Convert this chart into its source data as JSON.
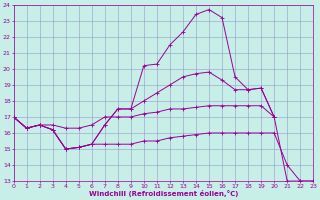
{
  "xlabel": "Windchill (Refroidissement éolien,°C)",
  "xlim": [
    0,
    23
  ],
  "ylim": [
    13,
    24
  ],
  "yticks": [
    13,
    14,
    15,
    16,
    17,
    18,
    19,
    20,
    21,
    22,
    23,
    24
  ],
  "xticks": [
    0,
    1,
    2,
    3,
    4,
    5,
    6,
    7,
    8,
    9,
    10,
    11,
    12,
    13,
    14,
    15,
    16,
    17,
    18,
    19,
    20,
    21,
    22,
    23
  ],
  "bg_color": "#c8eee8",
  "grid_color": "#9999cc",
  "line_color": "#990099",
  "line1_x": [
    0,
    1,
    2,
    3,
    4,
    5,
    6,
    7,
    8,
    9,
    10,
    11,
    12,
    13,
    14,
    15,
    16,
    17,
    18,
    19,
    20,
    21,
    22,
    23
  ],
  "line1_y": [
    17.0,
    16.3,
    16.5,
    16.2,
    15.0,
    15.1,
    15.3,
    16.5,
    17.5,
    17.5,
    20.2,
    20.3,
    21.5,
    22.3,
    23.4,
    23.7,
    23.2,
    19.5,
    18.7,
    18.8,
    17.0,
    13.0,
    13.0,
    13.0
  ],
  "line2_x": [
    0,
    1,
    2,
    3,
    4,
    5,
    6,
    7,
    8,
    9,
    10,
    11,
    12,
    13,
    14,
    15,
    16,
    17,
    18,
    19,
    20
  ],
  "line2_y": [
    17.0,
    16.3,
    16.5,
    16.2,
    15.0,
    15.1,
    15.3,
    16.5,
    17.5,
    17.5,
    18.0,
    18.5,
    19.0,
    19.5,
    19.7,
    19.8,
    19.3,
    18.7,
    18.7,
    18.8,
    17.0
  ],
  "line3_x": [
    0,
    1,
    2,
    3,
    4,
    5,
    6,
    7,
    8,
    9,
    10,
    11,
    12,
    13,
    14,
    15,
    16,
    17,
    18,
    19,
    20
  ],
  "line3_y": [
    17.0,
    16.3,
    16.5,
    16.5,
    16.3,
    16.3,
    16.5,
    17.0,
    17.0,
    17.0,
    17.2,
    17.3,
    17.5,
    17.5,
    17.6,
    17.7,
    17.7,
    17.7,
    17.7,
    17.7,
    17.0
  ],
  "line4_x": [
    0,
    1,
    2,
    3,
    4,
    5,
    6,
    7,
    8,
    9,
    10,
    11,
    12,
    13,
    14,
    15,
    16,
    17,
    18,
    19,
    20,
    21,
    22,
    23
  ],
  "line4_y": [
    17.0,
    16.3,
    16.5,
    16.2,
    15.0,
    15.1,
    15.3,
    15.3,
    15.3,
    15.3,
    15.5,
    15.5,
    15.7,
    15.8,
    15.9,
    16.0,
    16.0,
    16.0,
    16.0,
    16.0,
    16.0,
    14.0,
    13.0,
    13.0
  ],
  "marker": "+"
}
